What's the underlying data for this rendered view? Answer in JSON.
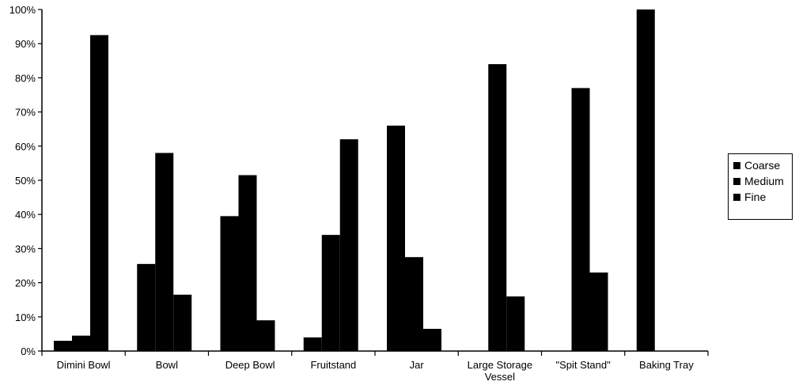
{
  "chart_data": {
    "type": "bar",
    "categories": [
      "Dimini Bowl",
      "Bowl",
      "Deep Bowl",
      "Fruitstand",
      "Jar",
      "Large Storage Vessel",
      "\"Spit Stand\"",
      "Baking Tray"
    ],
    "category_label_lines": [
      [
        "Dimini Bowl"
      ],
      [
        "Bowl"
      ],
      [
        "Deep Bowl"
      ],
      [
        "Fruitstand"
      ],
      [
        "Jar"
      ],
      [
        "Large Storage",
        "Vessel"
      ],
      [
        "\"Spit Stand\""
      ],
      [
        "Baking Tray"
      ]
    ],
    "series": [
      {
        "name": "Coarse",
        "values": [
          3,
          25.5,
          39.5,
          4,
          66,
          0,
          0,
          100
        ]
      },
      {
        "name": "Medium",
        "values": [
          4.5,
          58,
          51.5,
          34,
          27.5,
          84,
          77,
          0
        ]
      },
      {
        "name": "Fine",
        "values": [
          92.5,
          16.5,
          9,
          62,
          6.5,
          16,
          23,
          0
        ]
      }
    ],
    "ylim": [
      0,
      100
    ],
    "yticks": [
      "0%",
      "10%",
      "20%",
      "30%",
      "40%",
      "50%",
      "60%",
      "70%",
      "80%",
      "90%",
      "100%"
    ],
    "title": "",
    "xlabel": "",
    "ylabel": "",
    "grid": false,
    "legend_position": "right",
    "bar_color": "#000000",
    "axis_color": "#000000"
  }
}
